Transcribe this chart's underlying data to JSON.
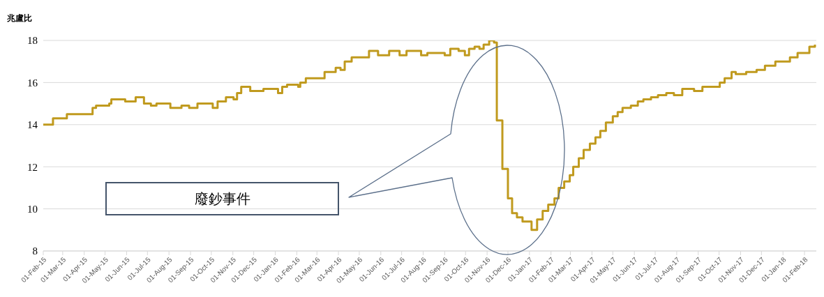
{
  "chart_data": {
    "type": "step",
    "ylabel": "兆盧比",
    "color": "#c09a1e",
    "x": [
      "2015-02-01",
      "2015-02-15",
      "2015-03-01",
      "2015-03-07",
      "2015-04-03",
      "2015-04-13",
      "2015-04-18",
      "2015-05-07",
      "2015-05-10",
      "2015-05-30",
      "2015-06-14",
      "2015-06-26",
      "2015-07-06",
      "2015-07-14",
      "2015-07-25",
      "2015-08-03",
      "2015-08-19",
      "2015-08-30",
      "2015-09-11",
      "2015-09-26",
      "2015-10-03",
      "2015-10-10",
      "2015-10-22",
      "2015-11-02",
      "2015-11-07",
      "2015-11-13",
      "2015-11-26",
      "2015-12-03",
      "2015-12-15",
      "2016-01-01",
      "2016-01-05",
      "2016-01-11",
      "2016-01-18",
      "2016-02-03",
      "2016-02-06",
      "2016-02-14",
      "2016-03-05",
      "2016-03-12",
      "2016-03-28",
      "2016-04-04",
      "2016-04-10",
      "2016-04-20",
      "2016-05-06",
      "2016-05-15",
      "2016-05-28",
      "2016-06-13",
      "2016-06-28",
      "2016-07-08",
      "2016-07-19",
      "2016-07-29",
      "2016-08-07",
      "2016-08-19",
      "2016-09-01",
      "2016-09-09",
      "2016-09-21",
      "2016-09-30",
      "2016-10-06",
      "2016-10-14",
      "2016-10-21",
      "2016-10-27",
      "2016-11-04",
      "2016-11-11",
      "2016-11-15",
      "2016-11-23",
      "2016-12-01",
      "2016-12-07",
      "2016-12-14",
      "2016-12-22",
      "2017-01-04",
      "2017-01-12",
      "2017-01-20",
      "2017-01-28",
      "2017-02-06",
      "2017-02-12",
      "2017-02-20",
      "2017-02-28",
      "2017-03-05",
      "2017-03-13",
      "2017-03-20",
      "2017-03-29",
      "2017-04-06",
      "2017-04-13",
      "2017-04-21",
      "2017-05-01",
      "2017-05-08",
      "2017-05-15",
      "2017-05-27",
      "2017-06-06",
      "2017-06-14",
      "2017-06-25",
      "2017-07-05",
      "2017-07-17",
      "2017-07-28",
      "2017-08-09",
      "2017-08-26",
      "2017-09-07",
      "2017-09-22",
      "2017-10-02",
      "2017-10-09",
      "2017-10-19",
      "2017-10-25",
      "2017-11-09",
      "2017-11-24",
      "2017-12-06",
      "2017-12-21",
      "2018-01-03",
      "2018-01-11",
      "2018-01-22",
      "2018-02-05",
      "2018-02-08",
      "2018-02-16"
    ],
    "values": [
      14.0,
      14.3,
      14.3,
      14.5,
      14.5,
      14.8,
      14.9,
      15.0,
      15.2,
      15.1,
      15.3,
      15.0,
      14.9,
      15.0,
      15.0,
      14.8,
      14.9,
      14.8,
      15.0,
      15.0,
      14.8,
      15.1,
      15.3,
      15.2,
      15.5,
      15.8,
      15.6,
      15.6,
      15.7,
      15.7,
      15.5,
      15.8,
      15.9,
      15.8,
      16.0,
      16.2,
      16.2,
      16.5,
      16.7,
      16.6,
      17.0,
      17.2,
      17.2,
      17.5,
      17.3,
      17.5,
      17.3,
      17.5,
      17.5,
      17.3,
      17.4,
      17.4,
      17.3,
      17.6,
      17.5,
      17.3,
      17.6,
      17.7,
      17.6,
      17.8,
      18.0,
      17.9,
      14.2,
      11.9,
      10.5,
      9.8,
      9.6,
      9.4,
      9.0,
      9.5,
      9.9,
      10.2,
      10.5,
      11.0,
      11.3,
      11.6,
      12.0,
      12.4,
      12.8,
      13.1,
      13.4,
      13.7,
      14.1,
      14.4,
      14.6,
      14.8,
      14.9,
      15.1,
      15.2,
      15.3,
      15.4,
      15.5,
      15.4,
      15.7,
      15.6,
      15.8,
      15.8,
      16.0,
      16.2,
      16.5,
      16.4,
      16.5,
      16.6,
      16.8,
      17.0,
      17.0,
      17.2,
      17.4,
      17.4,
      17.7,
      17.8
    ],
    "xlim": [
      "2015-02-01",
      "2018-02-18"
    ],
    "xticks": [
      {
        "value": "2015-02-01",
        "label": "01-Feb-15"
      },
      {
        "value": "2015-03-01",
        "label": "01-Mar-15"
      },
      {
        "value": "2015-04-01",
        "label": "01-Apr-15"
      },
      {
        "value": "2015-05-01",
        "label": "01-May-15"
      },
      {
        "value": "2015-06-01",
        "label": "01-Jun-15"
      },
      {
        "value": "2015-07-01",
        "label": "01-Jul-15"
      },
      {
        "value": "2015-08-01",
        "label": "01-Aug-15"
      },
      {
        "value": "2015-09-01",
        "label": "01-Sep-15"
      },
      {
        "value": "2015-10-01",
        "label": "01-Oct-15"
      },
      {
        "value": "2015-11-01",
        "label": "01-Nov-15"
      },
      {
        "value": "2015-12-01",
        "label": "01-Dec-15"
      },
      {
        "value": "2016-01-01",
        "label": "01-Jan-16"
      },
      {
        "value": "2016-02-01",
        "label": "01-Feb-16"
      },
      {
        "value": "2016-03-01",
        "label": "01-Mar-16"
      },
      {
        "value": "2016-04-01",
        "label": "01-Apr-16"
      },
      {
        "value": "2016-05-01",
        "label": "01-May-16"
      },
      {
        "value": "2016-06-01",
        "label": "01-Jun-16"
      },
      {
        "value": "2016-07-01",
        "label": "01-Jul-16"
      },
      {
        "value": "2016-08-01",
        "label": "01-Aug-16"
      },
      {
        "value": "2016-09-01",
        "label": "01-Sep-16"
      },
      {
        "value": "2016-10-01",
        "label": "01-Oct-16"
      },
      {
        "value": "2016-11-01",
        "label": "01-Nov-16"
      },
      {
        "value": "2016-12-01",
        "label": "01-Dec-16"
      },
      {
        "value": "2017-01-01",
        "label": "01-Jan-17"
      },
      {
        "value": "2017-02-01",
        "label": "01-Feb-17"
      },
      {
        "value": "2017-03-01",
        "label": "01-Mar-17"
      },
      {
        "value": "2017-04-01",
        "label": "01-Apr-17"
      },
      {
        "value": "2017-05-01",
        "label": "01-May-17"
      },
      {
        "value": "2017-06-01",
        "label": "01-Jun-17"
      },
      {
        "value": "2017-07-01",
        "label": "01-Jul-17"
      },
      {
        "value": "2017-08-01",
        "label": "01-Aug-17"
      },
      {
        "value": "2017-09-01",
        "label": "01-Sep-17"
      },
      {
        "value": "2017-10-01",
        "label": "01-Oct-17"
      },
      {
        "value": "2017-11-01",
        "label": "01-Nov-17"
      },
      {
        "value": "2017-12-01",
        "label": "01-Dec-17"
      },
      {
        "value": "2018-01-01",
        "label": "01-Jan-18"
      },
      {
        "value": "2018-02-01",
        "label": "01-Feb-18"
      }
    ],
    "ylim": [
      8,
      18
    ],
    "yticks": [
      8,
      10,
      12,
      14,
      16,
      18
    ],
    "grid": "y",
    "annotations": [
      "廢鈔事件"
    ]
  }
}
